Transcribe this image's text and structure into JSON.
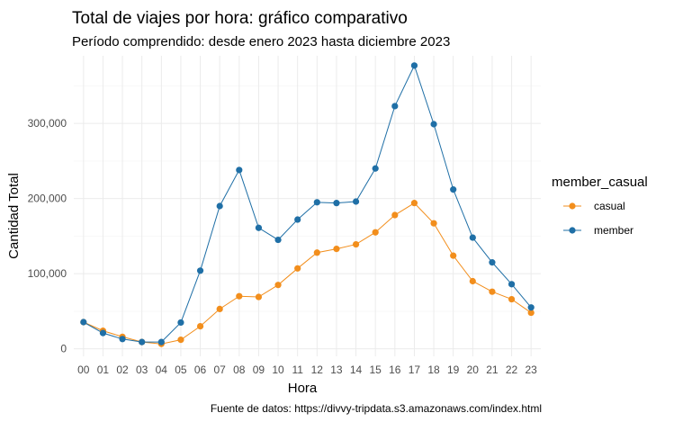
{
  "chart_data": {
    "type": "line",
    "title": "Total de viajes por hora: gráfico comparativo",
    "subtitle": "Período comprendido: desde enero 2023 hasta diciembre 2023",
    "xlabel": "Hora",
    "ylabel": "Cantidad Total",
    "caption": "Fuente de datos: https://divvy-tripdata.s3.amazonaws.com/index.html",
    "legend_title": "member_casual",
    "legend_position": "right",
    "grid": true,
    "categories": [
      "00",
      "01",
      "02",
      "03",
      "04",
      "05",
      "06",
      "07",
      "08",
      "09",
      "10",
      "11",
      "12",
      "13",
      "14",
      "15",
      "16",
      "17",
      "18",
      "19",
      "20",
      "21",
      "22",
      "23"
    ],
    "ylim": [
      -10000,
      390000
    ],
    "yticks": [
      0,
      100000,
      200000,
      300000
    ],
    "ytick_labels": [
      "0",
      "100,000",
      "200,000",
      "300,000"
    ],
    "series": [
      {
        "name": "casual",
        "color": "#f28e1c",
        "values": [
          35500,
          24000,
          16000,
          9000,
          6500,
          12000,
          30000,
          53000,
          70000,
          69000,
          85000,
          107000,
          128000,
          133000,
          139000,
          155000,
          178000,
          194000,
          167000,
          124000,
          90000,
          76000,
          66000,
          48000
        ]
      },
      {
        "name": "member",
        "color": "#1f6fa6",
        "values": [
          35500,
          21000,
          13000,
          9000,
          9000,
          35000,
          104000,
          190000,
          238000,
          161000,
          145000,
          172000,
          195000,
          194000,
          196000,
          240000,
          323000,
          377000,
          299000,
          212000,
          148000,
          115000,
          86000,
          55000
        ]
      }
    ]
  }
}
